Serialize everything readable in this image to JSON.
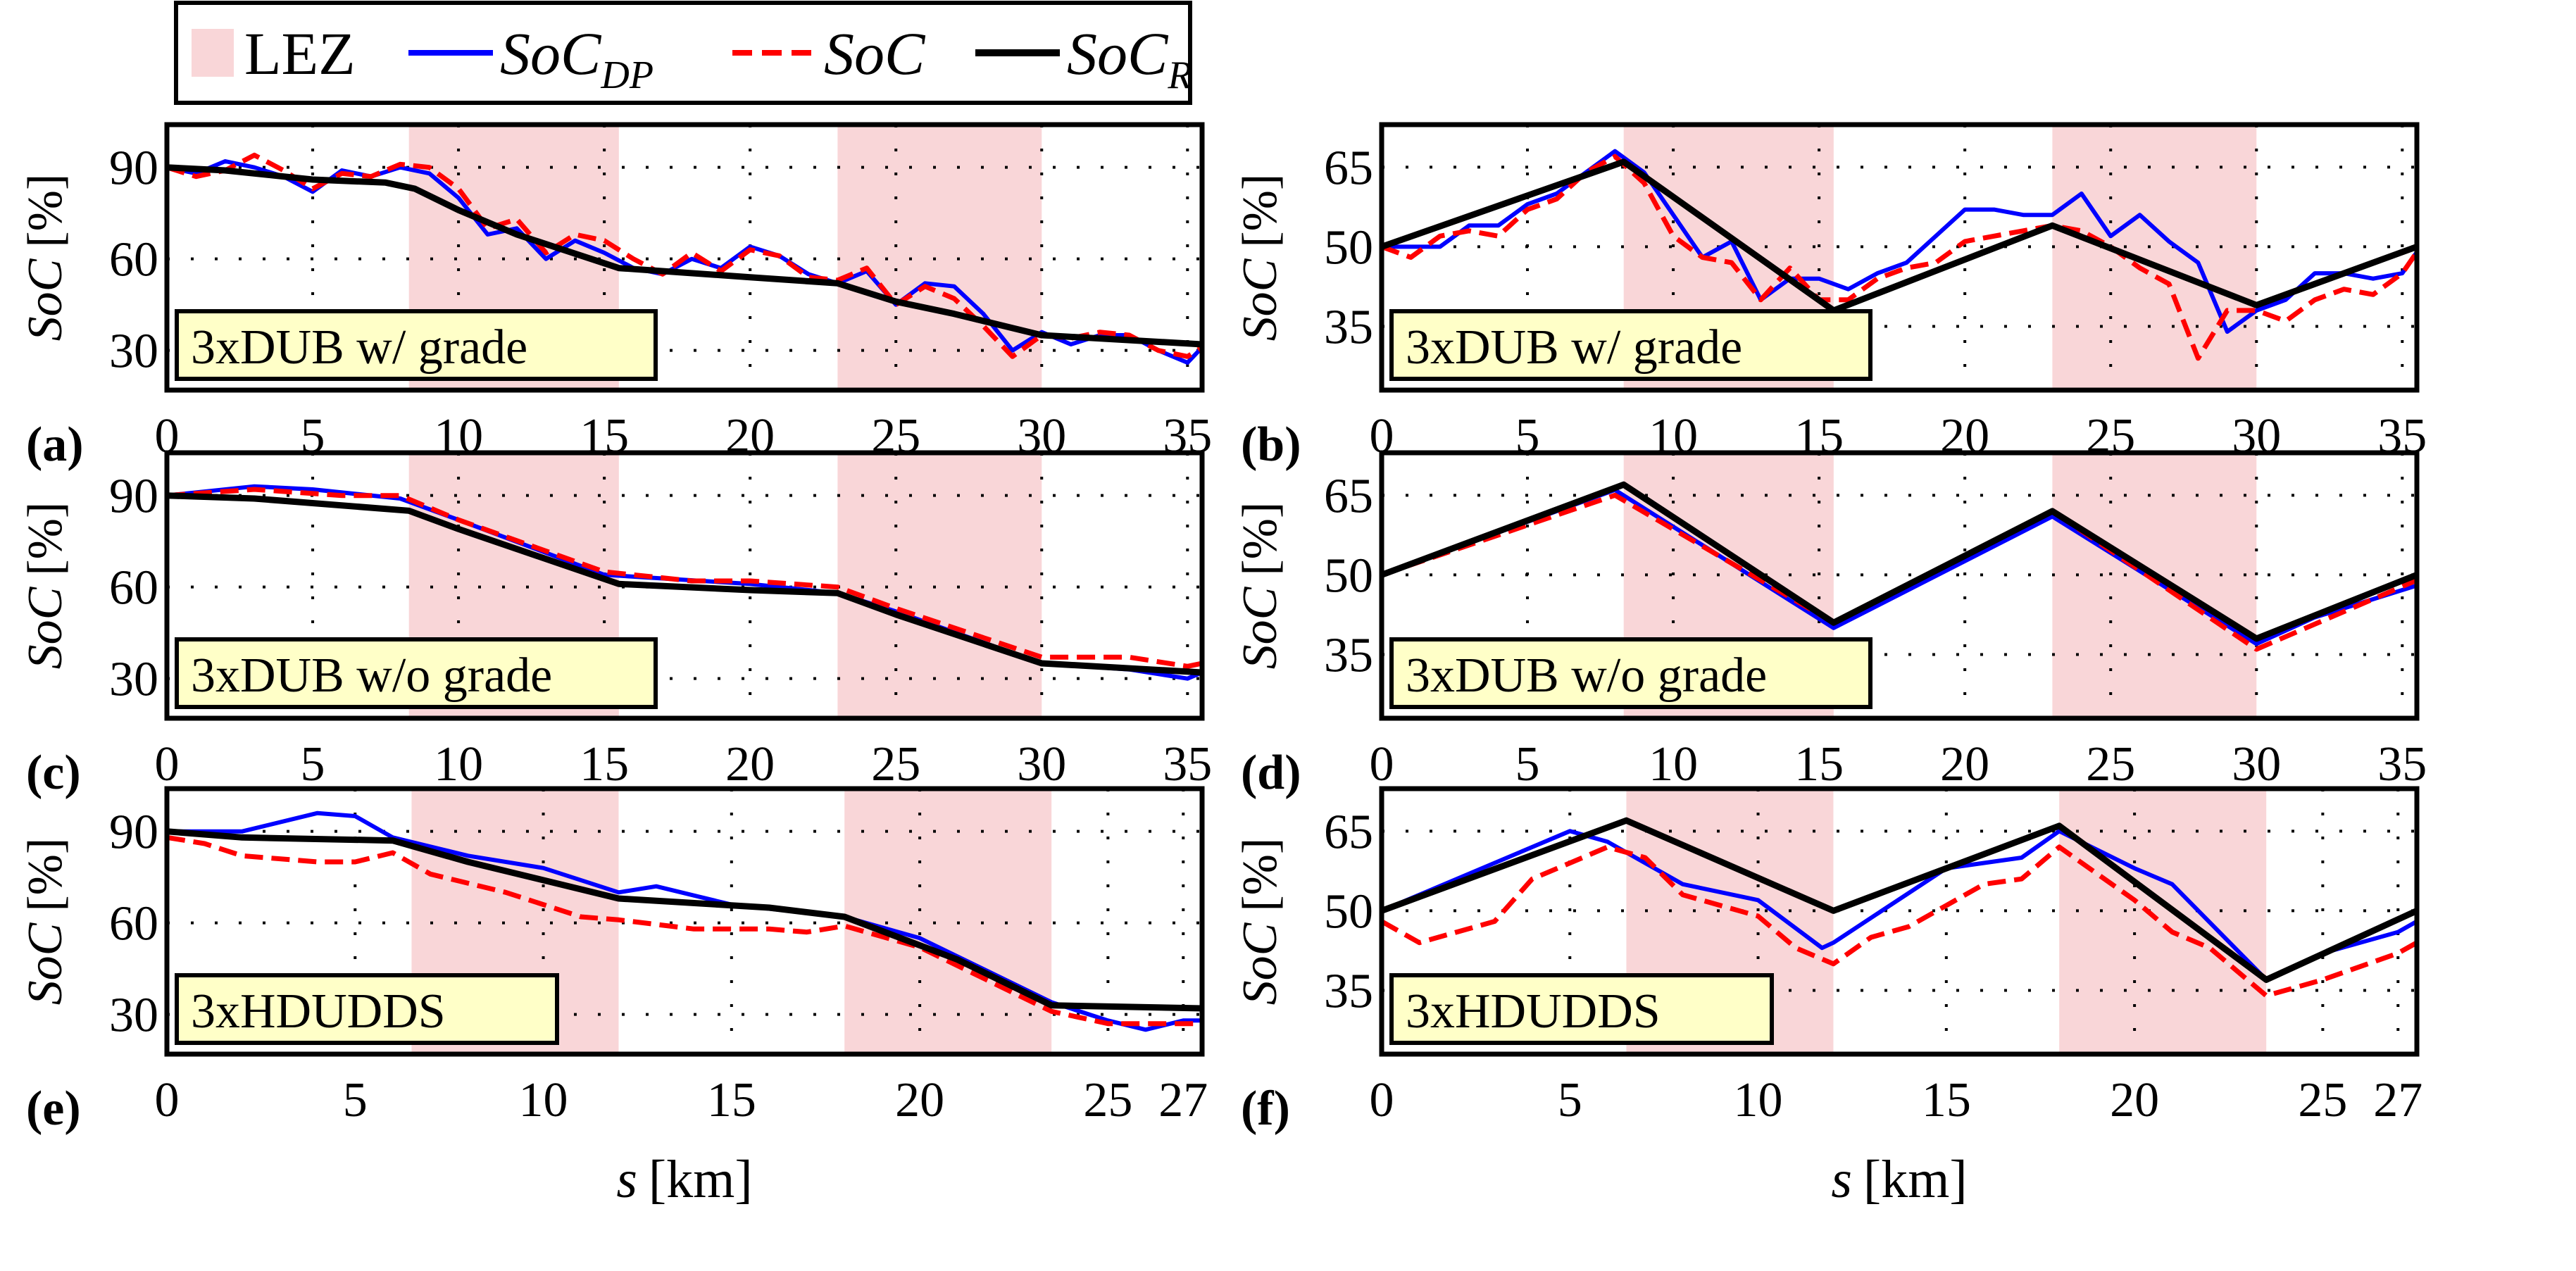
{
  "legend": {
    "entries": [
      {
        "label": "LEZ",
        "sub": "",
        "kind": "patch",
        "color": "#f9d6d8"
      },
      {
        "label": "SoC",
        "sub": "DP",
        "kind": "solid",
        "color": "#0000ff"
      },
      {
        "label": "SoC",
        "sub": "",
        "kind": "dashed",
        "color": "#ff0000"
      },
      {
        "label": "SoC",
        "sub": "R",
        "kind": "solid",
        "color": "#000000"
      }
    ]
  },
  "colors": {
    "lez": "#f9d6d8",
    "dp": "#0000ff",
    "soc": "#ff0000",
    "ref": "#000000",
    "annotation_bg": "#ffffc8"
  },
  "xlabel": {
    "var": "s",
    "unit": "[km]"
  },
  "ylabel": {
    "var": "SoC",
    "unit": "[%]"
  },
  "chart_data": [
    {
      "type": "line",
      "panel_label": "(a)",
      "annotation": "3xDUB w/ grade",
      "xlim": [
        0,
        35.5
      ],
      "ylim": [
        17,
        104
      ],
      "xticks": [
        "0",
        "5",
        "10",
        "15",
        "20",
        "25",
        "30",
        "35"
      ],
      "xtick_values": [
        0,
        5,
        10,
        15,
        20,
        25,
        30,
        35
      ],
      "yticks": [
        "30",
        "60",
        "90"
      ],
      "ytick_values": [
        30,
        60,
        90
      ],
      "grid": true,
      "lez": [
        [
          8.3,
          15.5
        ],
        [
          23,
          30
        ]
      ],
      "series": [
        {
          "name": "SoC_DP",
          "x": [
            0,
            1,
            2,
            3,
            4,
            5,
            6,
            7,
            8,
            9,
            10,
            11,
            12,
            13,
            14,
            15,
            16,
            17,
            18,
            19,
            20,
            21,
            22,
            23,
            24,
            25,
            26,
            27,
            28,
            29,
            30,
            31,
            32,
            33,
            34,
            35,
            35.5
          ],
          "y": [
            90,
            88,
            92,
            90,
            87,
            82,
            89,
            87,
            90,
            88,
            80,
            68,
            70,
            60,
            66,
            62,
            57,
            55,
            60,
            57,
            64,
            61,
            55,
            52,
            56,
            45,
            52,
            51,
            42,
            30,
            36,
            32,
            35,
            35,
            30,
            26,
            31
          ]
        },
        {
          "name": "SoC",
          "x": [
            0,
            1,
            2,
            3,
            4,
            5,
            6,
            7,
            8,
            9,
            10,
            11,
            12,
            13,
            14,
            15,
            16,
            17,
            18,
            19,
            20,
            21,
            22,
            23,
            24,
            25,
            26,
            27,
            28,
            29,
            30,
            31,
            32,
            33,
            34,
            35,
            35.5
          ],
          "y": [
            90,
            87,
            89,
            94,
            89,
            83,
            88,
            87,
            91,
            90,
            83,
            70,
            73,
            62,
            68,
            66,
            60,
            55,
            62,
            56,
            63,
            61,
            54,
            53,
            57,
            45,
            51,
            47,
            38,
            28,
            35,
            34,
            36,
            35,
            30,
            28,
            31
          ]
        },
        {
          "name": "SoC_R",
          "x": [
            0,
            2,
            5,
            7.5,
            8.5,
            10,
            12,
            15.5,
            20,
            23,
            25,
            27,
            30,
            35.5
          ],
          "y": [
            90,
            89,
            86,
            85,
            83,
            76,
            68,
            57,
            54,
            52,
            46,
            42,
            35,
            32
          ]
        }
      ]
    },
    {
      "type": "line",
      "panel_label": "(b)",
      "annotation": "3xDUB w/ grade",
      "xlim": [
        0,
        35.5
      ],
      "ylim": [
        23,
        73
      ],
      "xticks": [
        "0",
        "5",
        "10",
        "15",
        "20",
        "25",
        "30",
        "35"
      ],
      "xtick_values": [
        0,
        5,
        10,
        15,
        20,
        25,
        30,
        35
      ],
      "yticks": [
        "35",
        "50",
        "65"
      ],
      "ytick_values": [
        35,
        50,
        65
      ],
      "grid": true,
      "lez": [
        [
          8.3,
          15.5
        ],
        [
          23,
          30
        ]
      ],
      "series": [
        {
          "name": "SoC_DP",
          "x": [
            0,
            2,
            3,
            4,
            5,
            6,
            7,
            8,
            9,
            10,
            11,
            12,
            13,
            14,
            15,
            16,
            17,
            18,
            19,
            20,
            21,
            22,
            23,
            24,
            25,
            26,
            27,
            28,
            29,
            30,
            31,
            32,
            33,
            34,
            35,
            35.5
          ],
          "y": [
            50,
            50,
            54,
            54,
            58,
            60,
            64,
            68,
            64,
            56,
            48,
            51,
            40,
            44,
            44,
            42,
            45,
            47,
            52,
            57,
            57,
            56,
            56,
            60,
            52,
            56,
            51,
            47,
            34,
            38,
            40,
            45,
            45,
            44,
            45,
            49
          ]
        },
        {
          "name": "SoC",
          "x": [
            0,
            1,
            2,
            3,
            4,
            5,
            6,
            7,
            8,
            9,
            10,
            11,
            12,
            13,
            14,
            15,
            16,
            17,
            18,
            19,
            20,
            21,
            22,
            23,
            24,
            25,
            26,
            27,
            28,
            29,
            30,
            31,
            32,
            33,
            34,
            35,
            35.5
          ],
          "y": [
            50,
            48,
            52,
            53,
            52,
            57,
            59,
            64,
            67,
            62,
            52,
            48,
            47,
            40,
            46,
            40,
            40,
            44,
            46,
            47,
            51,
            52,
            53,
            54,
            53,
            50,
            46,
            43,
            29,
            38,
            38,
            36,
            40,
            42,
            41,
            45,
            49
          ]
        },
        {
          "name": "SoC_R",
          "x": [
            0,
            8.3,
            15.5,
            23,
            30,
            35.5
          ],
          "y": [
            50,
            66,
            38,
            54,
            39,
            50
          ]
        }
      ]
    },
    {
      "type": "line",
      "panel_label": "(c)",
      "annotation": "3xDUB w/o grade",
      "xlim": [
        0,
        35.5
      ],
      "ylim": [
        17,
        104
      ],
      "xticks": [
        "0",
        "5",
        "10",
        "15",
        "20",
        "25",
        "30",
        "35"
      ],
      "xtick_values": [
        0,
        5,
        10,
        15,
        20,
        25,
        30,
        35
      ],
      "yticks": [
        "30",
        "60",
        "90"
      ],
      "ytick_values": [
        30,
        60,
        90
      ],
      "grid": true,
      "lez": [
        [
          8.3,
          15.5
        ],
        [
          23,
          30
        ]
      ],
      "series": [
        {
          "name": "SoC_DP",
          "x": [
            0,
            3,
            5,
            8,
            10,
            15,
            20,
            23,
            25,
            30,
            33,
            35,
            35.5
          ],
          "y": [
            90,
            93,
            92,
            89,
            82,
            64,
            61,
            58,
            52,
            35,
            33,
            30,
            32
          ]
        },
        {
          "name": "SoC",
          "x": [
            0,
            3,
            6,
            8,
            10,
            15,
            18,
            20,
            23,
            25,
            30,
            33,
            35,
            35.5
          ],
          "y": [
            90,
            92,
            90,
            90,
            82,
            65,
            62,
            62,
            60,
            53,
            37,
            37,
            34,
            35
          ]
        },
        {
          "name": "SoC_R",
          "x": [
            0,
            3,
            8.3,
            10,
            15.5,
            20,
            23,
            25,
            30,
            35.5
          ],
          "y": [
            90,
            89,
            85,
            79,
            61,
            59,
            58,
            51,
            35,
            32
          ]
        }
      ]
    },
    {
      "type": "line",
      "panel_label": "(d)",
      "annotation": "3xDUB w/o grade",
      "xlim": [
        0,
        35.5
      ],
      "ylim": [
        23,
        73
      ],
      "xticks": [
        "0",
        "5",
        "10",
        "15",
        "20",
        "25",
        "30",
        "35"
      ],
      "xtick_values": [
        0,
        5,
        10,
        15,
        20,
        25,
        30,
        35
      ],
      "yticks": [
        "35",
        "50",
        "65"
      ],
      "ytick_values": [
        35,
        50,
        65
      ],
      "grid": true,
      "lez": [
        [
          8.3,
          15.5
        ],
        [
          23,
          30
        ]
      ],
      "series": [
        {
          "name": "SoC_DP",
          "x": [
            0,
            8,
            15.5,
            23,
            30,
            32,
            35.5
          ],
          "y": [
            50,
            66,
            40,
            61,
            37,
            42,
            48
          ]
        },
        {
          "name": "SoC",
          "x": [
            0,
            8,
            15.5,
            23,
            30,
            35.5
          ],
          "y": [
            50,
            65,
            41,
            62,
            36,
            49
          ]
        },
        {
          "name": "SoC_R",
          "x": [
            0,
            8.3,
            15.5,
            23,
            30,
            35.5
          ],
          "y": [
            50,
            67,
            41,
            62,
            38,
            50
          ]
        }
      ]
    },
    {
      "type": "line",
      "panel_label": "(e)",
      "annotation": "3xHDUDDS",
      "xlim": [
        0,
        27.5
      ],
      "ylim": [
        17,
        104
      ],
      "xticks": [
        "0",
        "5",
        "10",
        "15",
        "20",
        "25",
        "27"
      ],
      "xtick_values": [
        0,
        5,
        10,
        15,
        20,
        25,
        27
      ],
      "yticks": [
        "30",
        "60",
        "90"
      ],
      "ytick_values": [
        30,
        60,
        90
      ],
      "grid": true,
      "lez": [
        [
          6.5,
          12
        ],
        [
          18,
          23.5
        ]
      ],
      "series": [
        {
          "name": "SoC_DP",
          "x": [
            0,
            2,
            4,
            5,
            6,
            8,
            10,
            12,
            13,
            15,
            18,
            20,
            23.5,
            25,
            26,
            27,
            27.5
          ],
          "y": [
            90,
            90,
            96,
            95,
            88,
            82,
            78,
            70,
            72,
            66,
            62,
            55,
            34,
            28,
            25,
            28,
            28
          ]
        },
        {
          "name": "SoC",
          "x": [
            0,
            1,
            1.5,
            2,
            4,
            5,
            6,
            7,
            9,
            11,
            12,
            14,
            16,
            17,
            18,
            20,
            23.5,
            25,
            27,
            27.5
          ],
          "y": [
            88,
            86,
            84,
            82,
            80,
            80,
            83,
            76,
            70,
            62,
            61,
            58,
            58,
            57,
            59,
            52,
            31,
            27,
            27,
            27
          ]
        },
        {
          "name": "SoC_R",
          "x": [
            0,
            2,
            6,
            8,
            12,
            16,
            18,
            21,
            23.5,
            27.5
          ],
          "y": [
            90,
            88,
            87,
            80,
            68,
            65,
            62,
            48,
            33,
            32
          ]
        }
      ]
    },
    {
      "type": "line",
      "panel_label": "(f)",
      "annotation": "3xHDUDDS",
      "xlim": [
        0,
        27.5
      ],
      "ylim": [
        23,
        73
      ],
      "xticks": [
        "0",
        "5",
        "10",
        "15",
        "20",
        "25",
        "27"
      ],
      "xtick_values": [
        0,
        5,
        10,
        15,
        20,
        25,
        27
      ],
      "yticks": [
        "35",
        "50",
        "65"
      ],
      "ytick_values": [
        35,
        50,
        65
      ],
      "grid": true,
      "lez": [
        [
          6.5,
          12
        ],
        [
          18,
          23.5
        ]
      ],
      "series": [
        {
          "name": "SoC_DP",
          "x": [
            0,
            5,
            6,
            8,
            10,
            11.7,
            12,
            15,
            17,
            18,
            20,
            21,
            23.5,
            25,
            27,
            27.5
          ],
          "y": [
            50,
            65,
            63,
            55,
            52,
            43,
            44,
            58,
            60,
            65,
            58,
            55,
            37,
            42,
            46,
            48
          ]
        },
        {
          "name": "SoC",
          "x": [
            0,
            1,
            2,
            3,
            4,
            5,
            6,
            7,
            8,
            9,
            10,
            11,
            12,
            13,
            14,
            15,
            16,
            17,
            18,
            19,
            20,
            21,
            22,
            23.5,
            25,
            27,
            27.5
          ],
          "y": [
            48,
            44,
            46,
            48,
            56,
            59,
            62,
            60,
            53,
            51,
            49,
            43,
            40,
            45,
            47,
            51,
            55,
            56,
            62,
            57,
            52,
            46,
            43,
            34,
            37,
            42,
            44
          ]
        },
        {
          "name": "SoC_R",
          "x": [
            0,
            6.5,
            12,
            18,
            23.5,
            27.5
          ],
          "y": [
            50,
            67,
            50,
            66,
            37,
            50
          ]
        }
      ]
    }
  ]
}
